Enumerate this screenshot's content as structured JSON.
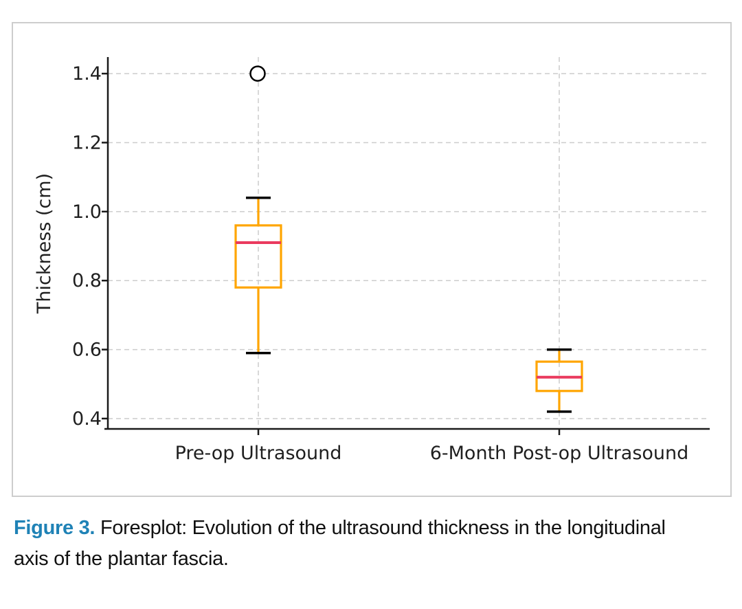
{
  "figure": {
    "caption": {
      "label": "Figure 3.",
      "text": "Foresplot: Evolution of the ultrasound thickness in the longitudinal axis of the plantar fascia.",
      "label_color": "#1f82b6",
      "text_color": "#111111"
    }
  },
  "chart_data": {
    "type": "boxplot",
    "title": "",
    "xlabel": "",
    "ylabel": "Thickness (cm)",
    "categories": [
      "Pre-op Ultrasound",
      "6-Month Post-op Ultrasound"
    ],
    "series": [
      {
        "name": "Pre-op Ultrasound",
        "whisker_low": 0.59,
        "q1": 0.78,
        "median": 0.91,
        "q3": 0.96,
        "whisker_high": 1.04,
        "outliers": [
          1.4
        ]
      },
      {
        "name": "6-Month Post-op Ultrasound",
        "whisker_low": 0.42,
        "q1": 0.48,
        "median": 0.52,
        "q3": 0.565,
        "whisker_high": 0.6,
        "outliers": []
      }
    ],
    "yticks": [
      0.4,
      0.6,
      0.8,
      1.0,
      1.2,
      1.4
    ],
    "ylim": [
      0.37,
      1.448
    ],
    "grid": {
      "style": "dashed",
      "horizontal": true,
      "vertical_at_categories": true
    },
    "legend": "none",
    "colors": {
      "box": "#ffa500",
      "whisker": "#ffa500",
      "median": "#ea3a5e",
      "cap": "#000000",
      "outlier": "#000000",
      "grid": "#cccccc",
      "axis": "#1a1a1a",
      "tick_text": "#1f1f1f"
    }
  }
}
